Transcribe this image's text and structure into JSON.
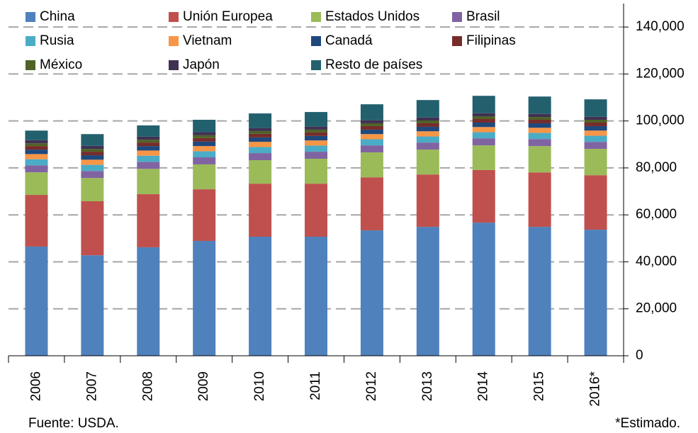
{
  "chart_data": {
    "type": "stacked_bar",
    "categories": [
      "2006",
      "2007",
      "2008",
      "2009",
      "2010",
      "2011",
      "2012",
      "2013",
      "2014",
      "2015",
      "2016*"
    ],
    "series": [
      {
        "name": "China",
        "color": "#4f81bd",
        "values": [
          46500,
          42800,
          46200,
          48900,
          50700,
          50700,
          53400,
          54900,
          56700,
          54900,
          53700
        ]
      },
      {
        "name": "Unión Europea",
        "color": "#c0504d",
        "values": [
          22000,
          23000,
          22600,
          22000,
          22600,
          22600,
          22600,
          22300,
          22400,
          23200,
          23200
        ]
      },
      {
        "name": "Estados Unidos",
        "color": "#9bbb59",
        "values": [
          9600,
          9900,
          10800,
          10600,
          10000,
          10600,
          10600,
          10600,
          10500,
          11200,
          11200
        ]
      },
      {
        "name": "Brasil",
        "color": "#8064a2",
        "values": [
          3000,
          3000,
          3000,
          3000,
          3000,
          3000,
          3000,
          3000,
          3000,
          3000,
          3000
        ]
      },
      {
        "name": "Rusia",
        "color": "#4bacc6",
        "values": [
          2600,
          2600,
          2600,
          2600,
          2600,
          2600,
          2600,
          2600,
          2600,
          2600,
          2600
        ]
      },
      {
        "name": "Vietnam",
        "color": "#f79646",
        "values": [
          2200,
          2200,
          2200,
          2200,
          2200,
          2200,
          2200,
          2200,
          2200,
          2200,
          2200
        ]
      },
      {
        "name": "Canadá",
        "color": "#1f497d",
        "values": [
          1900,
          1900,
          1900,
          1900,
          1900,
          1900,
          1900,
          1900,
          1900,
          1900,
          1900
        ]
      },
      {
        "name": "Filipinas",
        "color": "#772c2a",
        "values": [
          1500,
          1500,
          1500,
          1500,
          1500,
          1500,
          1500,
          1500,
          1500,
          1500,
          1500
        ]
      },
      {
        "name": "México",
        "color": "#4f6228",
        "values": [
          1200,
          1200,
          1200,
          1200,
          1200,
          1200,
          1200,
          1200,
          1200,
          1200,
          1200
        ]
      },
      {
        "name": "Japón",
        "color": "#403152",
        "values": [
          1300,
          1300,
          1300,
          1300,
          1300,
          1300,
          1300,
          1300,
          1300,
          1300,
          1300
        ]
      },
      {
        "name": "Resto de países",
        "color": "#23606e",
        "values": [
          4100,
          5000,
          4800,
          5300,
          6200,
          6200,
          6800,
          7400,
          7400,
          7400,
          7400
        ]
      }
    ],
    "ylim": [
      0,
      150000
    ],
    "yticks": [
      0,
      {
        "value": 20000,
        "label": "20,000"
      },
      {
        "value": 40000,
        "label": "40,000"
      },
      {
        "value": 60000,
        "label": "60,000"
      },
      {
        "value": 80000,
        "label": "80,000"
      },
      {
        "value": 100000,
        "label": "100,000"
      },
      {
        "value": 120000,
        "label": "120,000"
      },
      {
        "value": 140000,
        "label": "140,000"
      }
    ],
    "grid": true,
    "source": "Fuente: USDA.",
    "note": "*Estimado."
  }
}
